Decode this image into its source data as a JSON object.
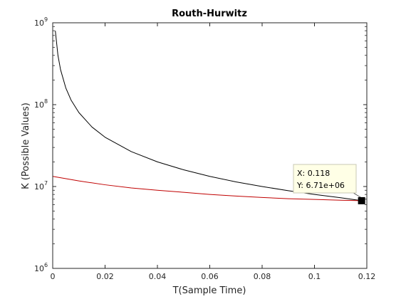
{
  "chart_data": {
    "type": "line",
    "title": "Routh-Hurwitz",
    "xlabel": "T(Sample Time)",
    "ylabel": "K (Possible Values)",
    "xlim": [
      0,
      0.12
    ],
    "ylim": [
      1000000,
      1000000000
    ],
    "yscale": "log",
    "grid": false,
    "x_ticks": [
      {
        "value": 0,
        "label": "0"
      },
      {
        "value": 0.02,
        "label": "0.02"
      },
      {
        "value": 0.04,
        "label": "0.04"
      },
      {
        "value": 0.06,
        "label": "0.06"
      },
      {
        "value": 0.08,
        "label": "0.08"
      },
      {
        "value": 0.1,
        "label": "0.1"
      },
      {
        "value": 0.12,
        "label": "0.12"
      }
    ],
    "y_ticks": [
      {
        "value": 1000000,
        "base": "10",
        "exp": "6"
      },
      {
        "value": 10000000,
        "base": "10",
        "exp": "7"
      },
      {
        "value": 100000000,
        "base": "10",
        "exp": "8"
      },
      {
        "value": 1000000000,
        "base": "10",
        "exp": "9"
      }
    ],
    "series": [
      {
        "color": "#000000",
        "x": [
          0.001,
          0.002,
          0.003,
          0.005,
          0.007,
          0.01,
          0.015,
          0.02,
          0.03,
          0.04,
          0.05,
          0.06,
          0.07,
          0.08,
          0.09,
          0.1,
          0.11,
          0.118
        ],
        "y": [
          800000000,
          400000000,
          267000000,
          160000000,
          114000000,
          80000000,
          53300000,
          40000000,
          26700000,
          20000000,
          16000000,
          13300000,
          11400000,
          10000000,
          8900000,
          8000000,
          7300000,
          6710000
        ]
      },
      {
        "color": "#c00000",
        "x": [
          0,
          0.01,
          0.02,
          0.03,
          0.04,
          0.05,
          0.06,
          0.07,
          0.08,
          0.09,
          0.1,
          0.11,
          0.118
        ],
        "y": [
          13300000,
          11700000,
          10500000,
          9600000,
          9000000,
          8500000,
          8000000,
          7650000,
          7350000,
          7100000,
          6950000,
          6800000,
          6710000
        ]
      }
    ],
    "datatip": {
      "x": 0.118,
      "y": 6710000,
      "x_text": "X: 0.118",
      "y_text": "Y: 6.71e+06"
    }
  }
}
